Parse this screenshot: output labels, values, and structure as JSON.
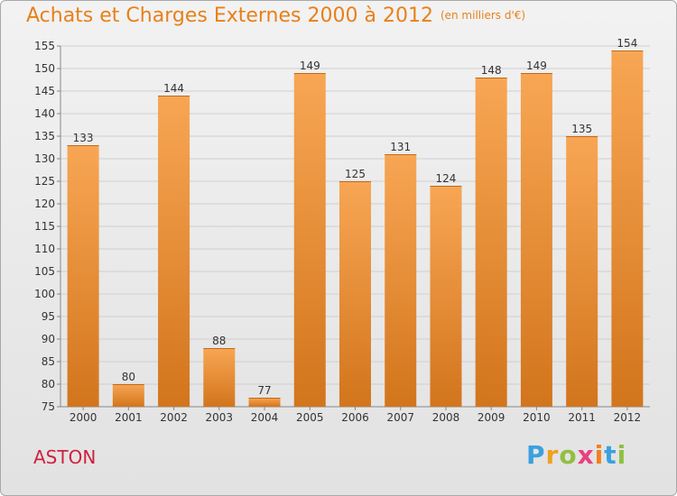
{
  "title": "Achats et Charges Externes 2000 à 2012",
  "subtitle": "(en milliers d'€)",
  "place": "ASTON",
  "brand": {
    "p": "P",
    "r": "r",
    "o": "o",
    "x": "x",
    "i": "i",
    "t": "t",
    "i2": "i"
  },
  "colors": {
    "bar_light": "#f8a654",
    "bar_dark": "#d2751c",
    "title": "#e8801a",
    "place": "#d02040"
  },
  "chart_data": {
    "type": "bar",
    "title": "Achats et Charges Externes 2000 à 2012",
    "subtitle": "(en milliers d'€)",
    "categories": [
      "2000",
      "2001",
      "2002",
      "2003",
      "2004",
      "2005",
      "2006",
      "2007",
      "2008",
      "2009",
      "2010",
      "2011",
      "2012"
    ],
    "values": [
      133,
      80,
      144,
      88,
      77,
      149,
      125,
      131,
      124,
      148,
      149,
      135,
      154
    ],
    "ylim": [
      75,
      155
    ],
    "yticks": [
      75,
      80,
      85,
      90,
      95,
      100,
      105,
      110,
      115,
      120,
      125,
      130,
      135,
      140,
      145,
      150,
      155
    ],
    "grid": true,
    "xlabel": "",
    "ylabel": ""
  }
}
